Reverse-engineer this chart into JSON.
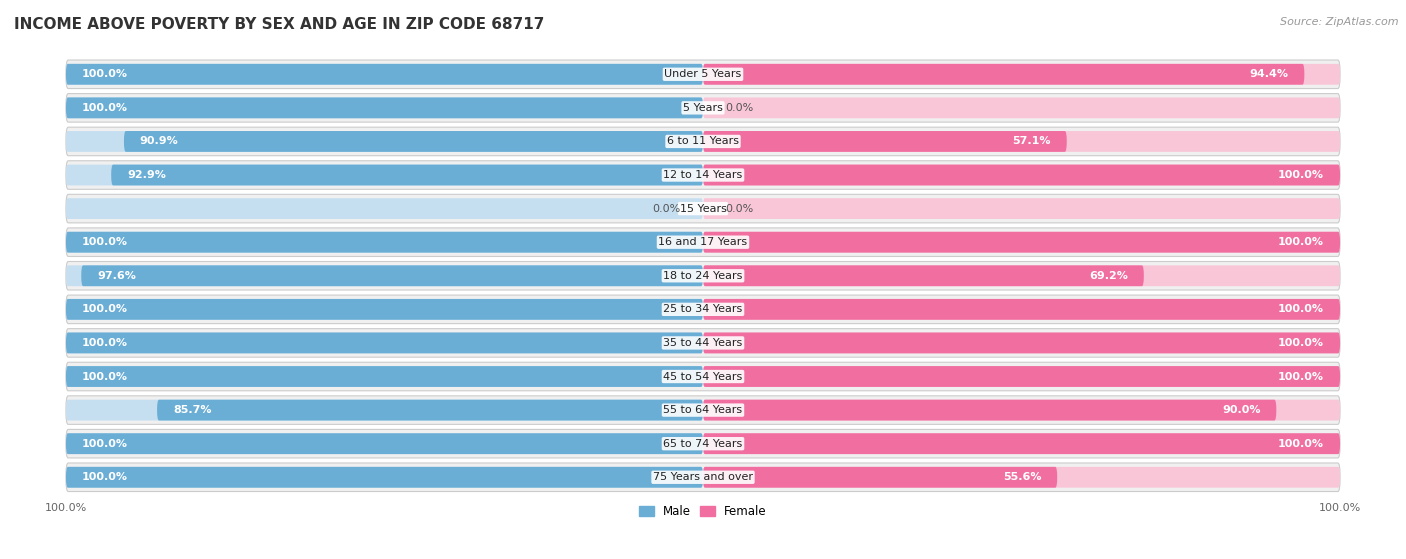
{
  "title": "INCOME ABOVE POVERTY BY SEX AND AGE IN ZIP CODE 68717",
  "source": "Source: ZipAtlas.com",
  "categories": [
    "Under 5 Years",
    "5 Years",
    "6 to 11 Years",
    "12 to 14 Years",
    "15 Years",
    "16 and 17 Years",
    "18 to 24 Years",
    "25 to 34 Years",
    "35 to 44 Years",
    "45 to 54 Years",
    "55 to 64 Years",
    "65 to 74 Years",
    "75 Years and over"
  ],
  "male_values": [
    100.0,
    100.0,
    90.9,
    92.9,
    0.0,
    100.0,
    97.6,
    100.0,
    100.0,
    100.0,
    85.7,
    100.0,
    100.0
  ],
  "female_values": [
    94.4,
    0.0,
    57.1,
    100.0,
    0.0,
    100.0,
    69.2,
    100.0,
    100.0,
    100.0,
    90.0,
    100.0,
    55.6
  ],
  "male_color": "#6aaed6",
  "female_color": "#f06fa0",
  "male_color_light": "#c6dff0",
  "female_color_light": "#f9c6d8",
  "male_label": "Male",
  "female_label": "Female",
  "background_color": "#ffffff",
  "row_bg_color": "#eeeeee",
  "title_fontsize": 11,
  "source_fontsize": 8,
  "label_fontsize": 8,
  "value_fontsize": 8,
  "tick_fontsize": 8
}
